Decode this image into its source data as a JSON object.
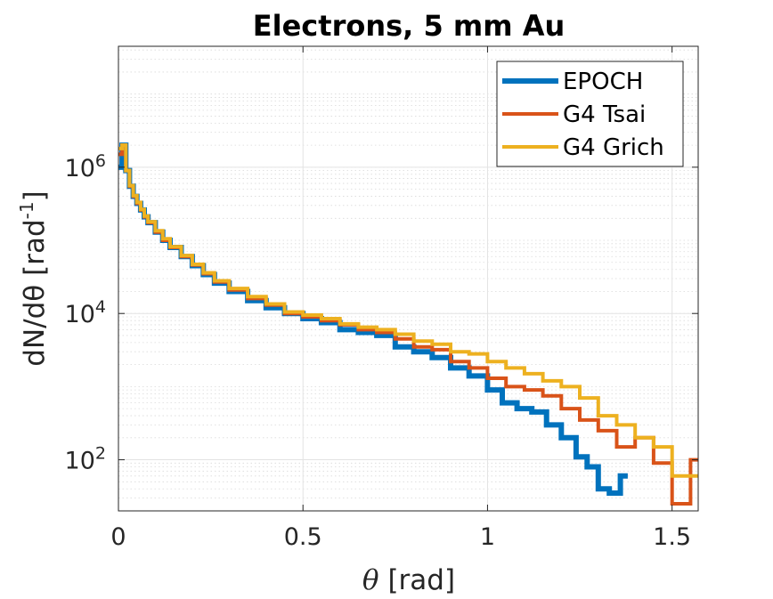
{
  "chart_data": {
    "type": "line",
    "title": "Electrons, 5 mm Au",
    "xlabel": "θ [rad]",
    "ylabel": "dN/dθ [rad-1]",
    "ylabel_parts": {
      "main": "dN/dθ [rad",
      "sup": "-1",
      "close": "]"
    },
    "xlim": [
      0,
      1.5708
    ],
    "ylim": [
      20,
      45000000
    ],
    "yscale": "log",
    "grid": true,
    "minor_grid": true,
    "legend_position": "top-right",
    "x_ticks": [
      {
        "value": 0,
        "label": "0"
      },
      {
        "value": 0.5,
        "label": "0.5"
      },
      {
        "value": 1,
        "label": "1"
      },
      {
        "value": 1.5,
        "label": "1.5"
      }
    ],
    "y_ticks": [
      {
        "value": 100,
        "base": "10",
        "exp": "2"
      },
      {
        "value": 10000,
        "base": "10",
        "exp": "4"
      },
      {
        "value": 1000000,
        "base": "10",
        "exp": "6"
      }
    ],
    "series": [
      {
        "name": "EPOCH",
        "color": "#0072BD",
        "width": 6,
        "x": [
          0.0,
          0.01,
          0.02,
          0.03,
          0.04,
          0.05,
          0.06,
          0.07,
          0.08,
          0.1,
          0.12,
          0.14,
          0.17,
          0.2,
          0.23,
          0.26,
          0.3,
          0.35,
          0.4,
          0.45,
          0.5,
          0.55,
          0.6,
          0.65,
          0.7,
          0.75,
          0.8,
          0.85,
          0.9,
          0.95,
          1.0,
          1.04,
          1.08,
          1.12,
          1.16,
          1.2,
          1.24,
          1.27,
          1.3,
          1.33,
          1.36
        ],
        "y": [
          1000000,
          2000000,
          900000,
          550000,
          400000,
          320000,
          260000,
          210000,
          175000,
          130000,
          100000,
          80000,
          60000,
          45000,
          34000,
          26000,
          20000,
          15000,
          12000,
          10000,
          8500,
          7500,
          6000,
          5500,
          5000,
          3500,
          3000,
          2500,
          1800,
          1400,
          900,
          600,
          500,
          450,
          300,
          200,
          110,
          80,
          40,
          35,
          60
        ]
      },
      {
        "name": "G4 Tsai",
        "color": "#D95319",
        "width": 4,
        "x": [
          0.0,
          0.01,
          0.02,
          0.03,
          0.04,
          0.05,
          0.06,
          0.07,
          0.08,
          0.1,
          0.12,
          0.14,
          0.17,
          0.2,
          0.23,
          0.26,
          0.3,
          0.35,
          0.4,
          0.45,
          0.5,
          0.55,
          0.6,
          0.65,
          0.7,
          0.75,
          0.8,
          0.85,
          0.9,
          0.95,
          1.0,
          1.05,
          1.1,
          1.15,
          1.2,
          1.25,
          1.3,
          1.35,
          1.4,
          1.45,
          1.5,
          1.55
        ],
        "y": [
          1500000,
          2000000,
          900000,
          550000,
          400000,
          320000,
          260000,
          210000,
          175000,
          130000,
          100000,
          80000,
          60000,
          46000,
          35000,
          27000,
          21000,
          16000,
          13000,
          10000,
          9000,
          8000,
          7000,
          6000,
          5500,
          4500,
          3500,
          3200,
          2200,
          1800,
          1300,
          1000,
          900,
          750,
          500,
          350,
          250,
          150,
          200,
          90,
          25,
          100
        ]
      },
      {
        "name": "G4 Grich",
        "color": "#EDB120",
        "width": 4,
        "x": [
          0.0,
          0.01,
          0.02,
          0.03,
          0.04,
          0.05,
          0.06,
          0.07,
          0.08,
          0.1,
          0.12,
          0.14,
          0.17,
          0.2,
          0.23,
          0.26,
          0.3,
          0.35,
          0.4,
          0.45,
          0.5,
          0.55,
          0.6,
          0.65,
          0.7,
          0.75,
          0.8,
          0.85,
          0.9,
          0.95,
          1.0,
          1.05,
          1.1,
          1.15,
          1.2,
          1.25,
          1.3,
          1.35,
          1.4,
          1.45,
          1.5,
          1.55
        ],
        "y": [
          1800000,
          2000000,
          900000,
          560000,
          410000,
          330000,
          265000,
          215000,
          180000,
          135000,
          105000,
          82000,
          62000,
          47000,
          36000,
          28000,
          22000,
          17000,
          13500,
          10500,
          9500,
          8500,
          7200,
          6500,
          6000,
          5200,
          4200,
          3800,
          3000,
          2800,
          2200,
          1800,
          1500,
          1200,
          1000,
          700,
          400,
          300,
          200,
          150,
          60,
          60
        ]
      }
    ]
  }
}
